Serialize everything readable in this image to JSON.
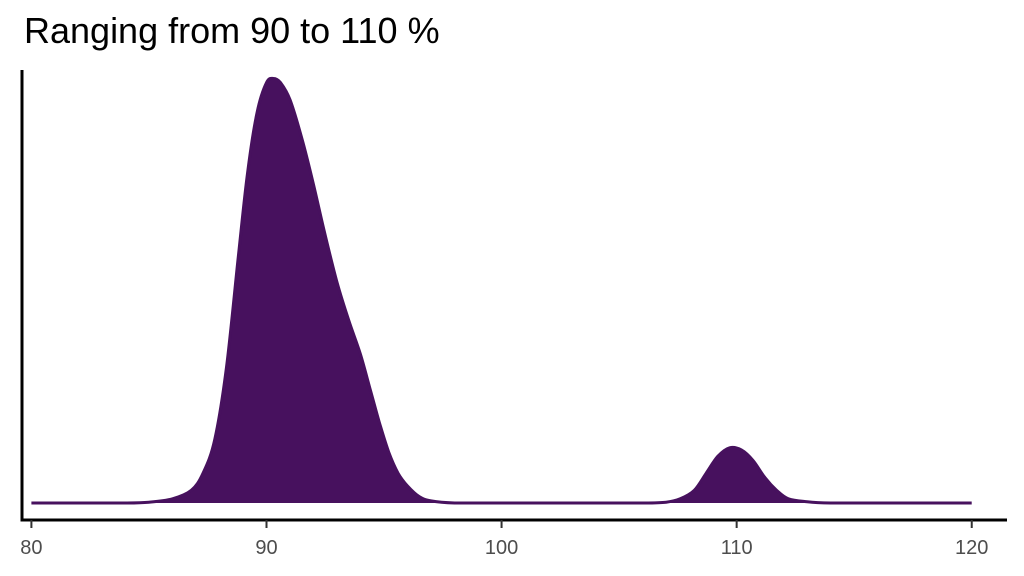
{
  "chart_data": {
    "type": "area",
    "title": "Ranging from 90 to 110 %",
    "xlabel": "",
    "ylabel": "",
    "xlim": [
      79.6,
      121.5
    ],
    "ylim": [
      -0.04,
      1.02
    ],
    "x_ticks": [
      80,
      90,
      100,
      110,
      120
    ],
    "x_tick_labels": [
      "80",
      "90",
      "100",
      "110",
      "120"
    ],
    "grid": false,
    "legend": "none",
    "fill_color": "#47115e",
    "series": [
      {
        "x": [
          80,
          82,
          84,
          85,
          86,
          86.8,
          87.3,
          87.8,
          88.3,
          88.8,
          89.2,
          89.6,
          90,
          90.3,
          90.6,
          91,
          91.5,
          92,
          92.5,
          93,
          93.5,
          94,
          94.4,
          94.8,
          95.2,
          95.6,
          96,
          96.5,
          97,
          98,
          100,
          104,
          106,
          107,
          107.6,
          108.2,
          108.7,
          109.2,
          109.7,
          110.2,
          110.7,
          111.2,
          111.7,
          112.2,
          113,
          114,
          116,
          120
        ],
        "y": [
          0,
          0,
          0,
          0.002,
          0.01,
          0.03,
          0.07,
          0.15,
          0.32,
          0.58,
          0.78,
          0.92,
          0.99,
          1.0,
          0.99,
          0.95,
          0.86,
          0.75,
          0.63,
          0.52,
          0.43,
          0.35,
          0.27,
          0.19,
          0.12,
          0.07,
          0.04,
          0.015,
          0.005,
          0,
          0,
          0,
          0,
          0.002,
          0.01,
          0.03,
          0.07,
          0.11,
          0.13,
          0.125,
          0.1,
          0.06,
          0.03,
          0.01,
          0.003,
          0,
          0,
          0
        ]
      }
    ]
  }
}
